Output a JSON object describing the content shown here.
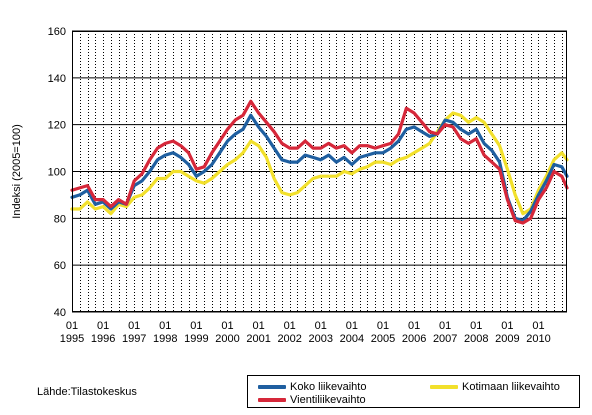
{
  "chart_data": {
    "type": "line",
    "ylabel": "Indeksi (2005=100)",
    "ylim": [
      40,
      160
    ],
    "yticks": [
      40,
      60,
      80,
      100,
      120,
      140,
      160
    ],
    "xlim": [
      1995.0,
      2010.917
    ],
    "xtick_top": "01",
    "xtick_years": [
      "1995",
      "1996",
      "1997",
      "1998",
      "1999",
      "2000",
      "2001",
      "2002",
      "2003",
      "2004",
      "2005",
      "2006",
      "2007",
      "2008",
      "2009",
      "2010"
    ],
    "grid": "horizontal solid, vertical dotted",
    "legend_position": "bottom",
    "series": [
      {
        "name": "Koko liikevaihto",
        "color": "#1f5fa0",
        "points": [
          [
            1995.0,
            89
          ],
          [
            1995.25,
            90
          ],
          [
            1995.5,
            92
          ],
          [
            1995.75,
            86
          ],
          [
            1996.0,
            87
          ],
          [
            1996.25,
            84
          ],
          [
            1996.5,
            87
          ],
          [
            1996.75,
            86
          ],
          [
            1997.0,
            94
          ],
          [
            1997.25,
            96
          ],
          [
            1997.5,
            100
          ],
          [
            1997.75,
            105
          ],
          [
            1998.0,
            107
          ],
          [
            1998.25,
            108
          ],
          [
            1998.5,
            106
          ],
          [
            1998.75,
            103
          ],
          [
            1999.0,
            98
          ],
          [
            1999.25,
            100
          ],
          [
            1999.5,
            103
          ],
          [
            1999.75,
            108
          ],
          [
            2000.0,
            113
          ],
          [
            2000.25,
            116
          ],
          [
            2000.5,
            118
          ],
          [
            2000.75,
            124
          ],
          [
            2001.0,
            119
          ],
          [
            2001.25,
            115
          ],
          [
            2001.5,
            110
          ],
          [
            2001.75,
            105
          ],
          [
            2002.0,
            104
          ],
          [
            2002.25,
            104
          ],
          [
            2002.5,
            107
          ],
          [
            2002.75,
            106
          ],
          [
            2003.0,
            105
          ],
          [
            2003.25,
            107
          ],
          [
            2003.5,
            104
          ],
          [
            2003.75,
            106
          ],
          [
            2004.0,
            103
          ],
          [
            2004.25,
            106
          ],
          [
            2004.5,
            107
          ],
          [
            2004.75,
            108
          ],
          [
            2005.0,
            108
          ],
          [
            2005.25,
            110
          ],
          [
            2005.5,
            113
          ],
          [
            2005.75,
            118
          ],
          [
            2006.0,
            119
          ],
          [
            2006.25,
            117
          ],
          [
            2006.5,
            115
          ],
          [
            2006.75,
            116
          ],
          [
            2007.0,
            122
          ],
          [
            2007.25,
            121
          ],
          [
            2007.5,
            118
          ],
          [
            2007.75,
            116
          ],
          [
            2008.0,
            118
          ],
          [
            2008.25,
            112
          ],
          [
            2008.5,
            109
          ],
          [
            2008.75,
            104
          ],
          [
            2009.0,
            89
          ],
          [
            2009.25,
            80
          ],
          [
            2009.5,
            79
          ],
          [
            2009.75,
            83
          ],
          [
            2010.0,
            90
          ],
          [
            2010.25,
            96
          ],
          [
            2010.5,
            103
          ],
          [
            2010.75,
            102
          ],
          [
            2010.917,
            98
          ]
        ]
      },
      {
        "name": "Kotimaan liikevaihto",
        "color": "#f2e02b",
        "points": [
          [
            1995.0,
            84
          ],
          [
            1995.25,
            84
          ],
          [
            1995.5,
            87
          ],
          [
            1995.75,
            84
          ],
          [
            1996.0,
            85
          ],
          [
            1996.25,
            82
          ],
          [
            1996.5,
            86
          ],
          [
            1996.75,
            85
          ],
          [
            1997.0,
            89
          ],
          [
            1997.25,
            90
          ],
          [
            1997.5,
            93
          ],
          [
            1997.75,
            97
          ],
          [
            1998.0,
            97
          ],
          [
            1998.25,
            100
          ],
          [
            1998.5,
            100
          ],
          [
            1998.75,
            98
          ],
          [
            1999.0,
            96
          ],
          [
            1999.25,
            95
          ],
          [
            1999.5,
            97
          ],
          [
            1999.75,
            100
          ],
          [
            2000.0,
            103
          ],
          [
            2000.25,
            105
          ],
          [
            2000.5,
            108
          ],
          [
            2000.75,
            113
          ],
          [
            2001.0,
            111
          ],
          [
            2001.25,
            106
          ],
          [
            2001.5,
            97
          ],
          [
            2001.75,
            91
          ],
          [
            2002.0,
            90
          ],
          [
            2002.25,
            91
          ],
          [
            2002.5,
            94
          ],
          [
            2002.75,
            97
          ],
          [
            2003.0,
            98
          ],
          [
            2003.25,
            98
          ],
          [
            2003.5,
            98
          ],
          [
            2003.75,
            100
          ],
          [
            2004.0,
            99
          ],
          [
            2004.25,
            101
          ],
          [
            2004.5,
            102
          ],
          [
            2004.75,
            104
          ],
          [
            2005.0,
            104
          ],
          [
            2005.25,
            103
          ],
          [
            2005.5,
            105
          ],
          [
            2005.75,
            106
          ],
          [
            2006.0,
            108
          ],
          [
            2006.25,
            110
          ],
          [
            2006.5,
            112
          ],
          [
            2006.75,
            117
          ],
          [
            2007.0,
            122
          ],
          [
            2007.25,
            125
          ],
          [
            2007.5,
            124
          ],
          [
            2007.75,
            121
          ],
          [
            2008.0,
            123
          ],
          [
            2008.25,
            121
          ],
          [
            2008.5,
            116
          ],
          [
            2008.75,
            111
          ],
          [
            2009.0,
            101
          ],
          [
            2009.25,
            90
          ],
          [
            2009.5,
            82
          ],
          [
            2009.75,
            84
          ],
          [
            2010.0,
            92
          ],
          [
            2010.25,
            98
          ],
          [
            2010.5,
            105
          ],
          [
            2010.75,
            108
          ],
          [
            2010.917,
            105
          ]
        ]
      },
      {
        "name": "Vientiliikevaihto",
        "color": "#d6283a",
        "points": [
          [
            1995.0,
            92
          ],
          [
            1995.25,
            93
          ],
          [
            1995.5,
            94
          ],
          [
            1995.75,
            88
          ],
          [
            1996.0,
            88
          ],
          [
            1996.25,
            85
          ],
          [
            1996.5,
            88
          ],
          [
            1996.75,
            86
          ],
          [
            1997.0,
            96
          ],
          [
            1997.25,
            99
          ],
          [
            1997.5,
            105
          ],
          [
            1997.75,
            110
          ],
          [
            1998.0,
            112
          ],
          [
            1998.25,
            113
          ],
          [
            1998.5,
            111
          ],
          [
            1998.75,
            108
          ],
          [
            1999.0,
            101
          ],
          [
            1999.25,
            102
          ],
          [
            1999.5,
            108
          ],
          [
            1999.75,
            113
          ],
          [
            2000.0,
            118
          ],
          [
            2000.25,
            122
          ],
          [
            2000.5,
            124
          ],
          [
            2000.75,
            130
          ],
          [
            2001.0,
            125
          ],
          [
            2001.25,
            121
          ],
          [
            2001.5,
            117
          ],
          [
            2001.75,
            112
          ],
          [
            2002.0,
            110
          ],
          [
            2002.25,
            110
          ],
          [
            2002.5,
            113
          ],
          [
            2002.75,
            110
          ],
          [
            2003.0,
            110
          ],
          [
            2003.25,
            112
          ],
          [
            2003.5,
            110
          ],
          [
            2003.75,
            111
          ],
          [
            2004.0,
            108
          ],
          [
            2004.25,
            111
          ],
          [
            2004.5,
            111
          ],
          [
            2004.75,
            110
          ],
          [
            2005.0,
            111
          ],
          [
            2005.25,
            112
          ],
          [
            2005.5,
            116
          ],
          [
            2005.75,
            127
          ],
          [
            2006.0,
            125
          ],
          [
            2006.25,
            121
          ],
          [
            2006.5,
            117
          ],
          [
            2006.75,
            116
          ],
          [
            2007.0,
            120
          ],
          [
            2007.25,
            119
          ],
          [
            2007.5,
            114
          ],
          [
            2007.75,
            112
          ],
          [
            2008.0,
            114
          ],
          [
            2008.25,
            107
          ],
          [
            2008.5,
            104
          ],
          [
            2008.75,
            101
          ],
          [
            2009.0,
            88
          ],
          [
            2009.25,
            79
          ],
          [
            2009.5,
            78
          ],
          [
            2009.75,
            80
          ],
          [
            2010.0,
            88
          ],
          [
            2010.25,
            93
          ],
          [
            2010.5,
            100
          ],
          [
            2010.75,
            98
          ],
          [
            2010.917,
            93
          ]
        ]
      }
    ]
  },
  "source_label": "Lähde:Tilastokeskus"
}
